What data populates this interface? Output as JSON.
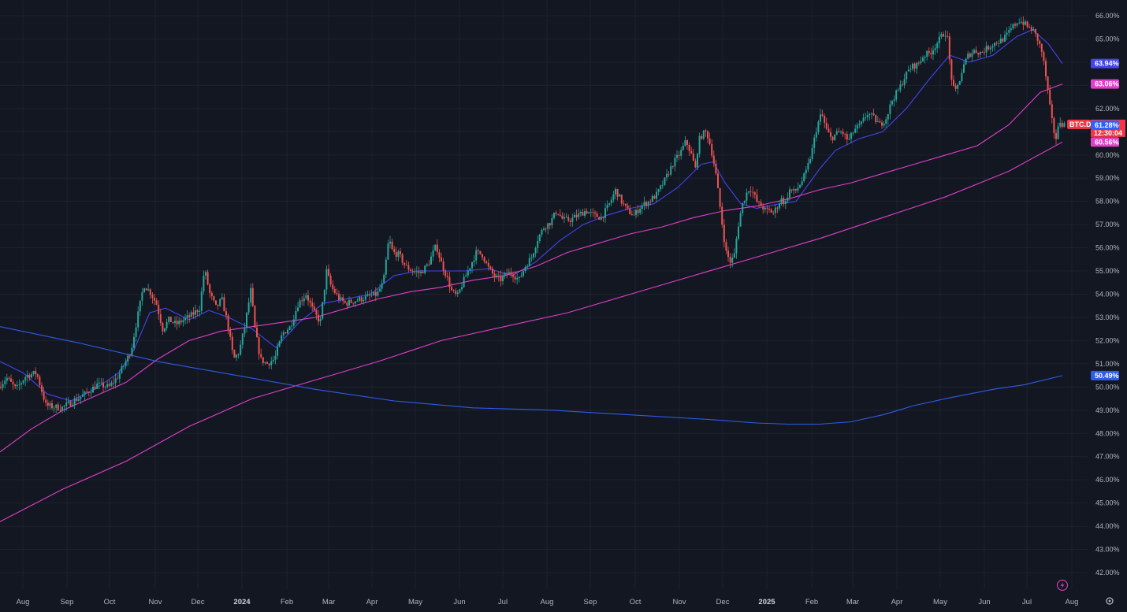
{
  "chart_data": {
    "type": "candlestick",
    "symbol": "BTC.D",
    "last_value_label": "61.32%",
    "countdown": "12:30:04",
    "y_axis": {
      "unit": "%",
      "ylim": [
        41.6,
        66.4
      ],
      "ticks": [
        "42.00%",
        "43.00%",
        "44.00%",
        "45.00%",
        "46.00%",
        "47.00%",
        "48.00%",
        "49.00%",
        "50.00%",
        "51.00%",
        "52.00%",
        "53.00%",
        "54.00%",
        "55.00%",
        "56.00%",
        "57.00%",
        "58.00%",
        "59.00%",
        "60.00%",
        "61.00%",
        "62.00%",
        "63.00%",
        "64.00%",
        "65.00%",
        "66.00%"
      ]
    },
    "x_axis": {
      "ticks": [
        {
          "label": "Aug",
          "bold": false
        },
        {
          "label": "Sep",
          "bold": false
        },
        {
          "label": "Oct",
          "bold": false
        },
        {
          "label": "Nov",
          "bold": false
        },
        {
          "label": "Dec",
          "bold": false
        },
        {
          "label": "2024",
          "bold": true
        },
        {
          "label": "Feb",
          "bold": false
        },
        {
          "label": "Mar",
          "bold": false
        },
        {
          "label": "Apr",
          "bold": false
        },
        {
          "label": "May",
          "bold": false
        },
        {
          "label": "Jun",
          "bold": false
        },
        {
          "label": "Jul",
          "bold": false
        },
        {
          "label": "Aug",
          "bold": false
        },
        {
          "label": "Sep",
          "bold": false
        },
        {
          "label": "Oct",
          "bold": false
        },
        {
          "label": "Nov",
          "bold": false
        },
        {
          "label": "Dec",
          "bold": false
        },
        {
          "label": "2025",
          "bold": true
        },
        {
          "label": "Feb",
          "bold": false
        },
        {
          "label": "Mar",
          "bold": false
        },
        {
          "label": "Apr",
          "bold": false
        },
        {
          "label": "May",
          "bold": false
        },
        {
          "label": "Jun",
          "bold": false
        },
        {
          "label": "Jul",
          "bold": false
        },
        {
          "label": "Aug",
          "bold": false
        }
      ]
    },
    "grid": true,
    "price_path": [
      [
        0,
        50.0
      ],
      [
        10,
        50.4
      ],
      [
        22,
        49.9
      ],
      [
        35,
        50.5
      ],
      [
        48,
        50.6
      ],
      [
        60,
        49.2
      ],
      [
        80,
        49.1
      ],
      [
        95,
        49.4
      ],
      [
        110,
        49.7
      ],
      [
        125,
        50.1
      ],
      [
        140,
        50.0
      ],
      [
        150,
        50.4
      ],
      [
        160,
        51.0
      ],
      [
        168,
        51.6
      ],
      [
        176,
        53.0
      ],
      [
        184,
        54.4
      ],
      [
        192,
        54.1
      ],
      [
        200,
        53.6
      ],
      [
        208,
        52.5
      ],
      [
        216,
        52.9
      ],
      [
        225,
        52.7
      ],
      [
        235,
        52.9
      ],
      [
        245,
        53.1
      ],
      [
        255,
        53.4
      ],
      [
        261,
        55.1
      ],
      [
        268,
        54.0
      ],
      [
        276,
        53.4
      ],
      [
        283,
        53.8
      ],
      [
        290,
        52.8
      ],
      [
        298,
        51.2
      ],
      [
        305,
        51.5
      ],
      [
        312,
        52.6
      ],
      [
        320,
        54.2
      ],
      [
        325,
        52.5
      ],
      [
        332,
        51.2
      ],
      [
        340,
        51.0
      ],
      [
        350,
        51.2
      ],
      [
        360,
        52.3
      ],
      [
        370,
        52.6
      ],
      [
        380,
        53.6
      ],
      [
        390,
        54.0
      ],
      [
        400,
        53.2
      ],
      [
        408,
        52.8
      ],
      [
        416,
        55.0
      ],
      [
        422,
        54.3
      ],
      [
        432,
        53.8
      ],
      [
        440,
        53.6
      ],
      [
        450,
        53.7
      ],
      [
        460,
        53.8
      ],
      [
        470,
        53.9
      ],
      [
        480,
        54.0
      ],
      [
        488,
        54.5
      ],
      [
        495,
        56.4
      ],
      [
        500,
        55.8
      ],
      [
        508,
        55.7
      ],
      [
        516,
        55.2
      ],
      [
        525,
        55.0
      ],
      [
        535,
        54.9
      ],
      [
        545,
        55.3
      ],
      [
        555,
        56.1
      ],
      [
        562,
        55.3
      ],
      [
        568,
        54.8
      ],
      [
        575,
        54.1
      ],
      [
        582,
        53.9
      ],
      [
        590,
        54.6
      ],
      [
        598,
        55.2
      ],
      [
        606,
        55.8
      ],
      [
        614,
        55.7
      ],
      [
        620,
        55.2
      ],
      [
        628,
        54.8
      ],
      [
        636,
        54.6
      ],
      [
        645,
        54.9
      ],
      [
        652,
        54.9
      ],
      [
        660,
        54.6
      ],
      [
        668,
        55.2
      ],
      [
        676,
        55.6
      ],
      [
        684,
        56.4
      ],
      [
        692,
        56.9
      ],
      [
        700,
        57.1
      ],
      [
        708,
        57.6
      ],
      [
        716,
        57.2
      ],
      [
        725,
        57.2
      ],
      [
        735,
        57.4
      ],
      [
        745,
        57.6
      ],
      [
        755,
        57.4
      ],
      [
        765,
        57.3
      ],
      [
        775,
        57.9
      ],
      [
        783,
        58.5
      ],
      [
        790,
        58.0
      ],
      [
        798,
        57.6
      ],
      [
        806,
        57.4
      ],
      [
        815,
        57.8
      ],
      [
        825,
        58.0
      ],
      [
        835,
        58.3
      ],
      [
        845,
        58.9
      ],
      [
        855,
        59.6
      ],
      [
        865,
        60.1
      ],
      [
        872,
        60.6
      ],
      [
        878,
        60.1
      ],
      [
        884,
        59.4
      ],
      [
        888,
        60.6
      ],
      [
        893,
        60.9
      ],
      [
        898,
        61.0
      ],
      [
        903,
        60.4
      ],
      [
        909,
        59.4
      ],
      [
        914,
        58.1
      ],
      [
        919,
        56.7
      ],
      [
        923,
        55.8
      ],
      [
        928,
        55.4
      ],
      [
        933,
        55.6
      ],
      [
        938,
        56.9
      ],
      [
        943,
        57.8
      ],
      [
        948,
        58.3
      ],
      [
        953,
        58.6
      ],
      [
        958,
        58.3
      ],
      [
        963,
        57.9
      ],
      [
        968,
        57.8
      ],
      [
        973,
        57.6
      ],
      [
        978,
        57.6
      ],
      [
        983,
        57.5
      ],
      [
        988,
        57.8
      ],
      [
        993,
        58.1
      ],
      [
        998,
        57.9
      ],
      [
        1003,
        58.5
      ],
      [
        1010,
        58.4
      ],
      [
        1018,
        58.8
      ],
      [
        1025,
        59.3
      ],
      [
        1032,
        60.2
      ],
      [
        1038,
        61.2
      ],
      [
        1044,
        61.8
      ],
      [
        1050,
        61.1
      ],
      [
        1056,
        60.7
      ],
      [
        1062,
        60.9
      ],
      [
        1070,
        61.0
      ],
      [
        1078,
        60.6
      ],
      [
        1086,
        61.1
      ],
      [
        1094,
        61.3
      ],
      [
        1102,
        61.8
      ],
      [
        1110,
        61.6
      ],
      [
        1118,
        61.3
      ],
      [
        1126,
        61.6
      ],
      [
        1134,
        62.4
      ],
      [
        1142,
        62.8
      ],
      [
        1150,
        63.4
      ],
      [
        1158,
        63.8
      ],
      [
        1166,
        63.9
      ],
      [
        1174,
        64.3
      ],
      [
        1182,
        64.4
      ],
      [
        1190,
        64.8
      ],
      [
        1198,
        65.2
      ],
      [
        1203,
        65.3
      ],
      [
        1208,
        63.5
      ],
      [
        1213,
        62.6
      ],
      [
        1218,
        63.1
      ],
      [
        1224,
        63.8
      ],
      [
        1230,
        64.3
      ],
      [
        1238,
        64.5
      ],
      [
        1246,
        64.4
      ],
      [
        1254,
        64.6
      ],
      [
        1262,
        64.8
      ],
      [
        1270,
        64.9
      ],
      [
        1278,
        65.1
      ],
      [
        1286,
        65.5
      ],
      [
        1294,
        65.8
      ],
      [
        1300,
        65.7
      ],
      [
        1306,
        65.5
      ],
      [
        1312,
        65.4
      ],
      [
        1318,
        65.0
      ],
      [
        1324,
        64.4
      ],
      [
        1329,
        63.3
      ],
      [
        1334,
        62.0
      ],
      [
        1338,
        61.1
      ],
      [
        1342,
        60.7
      ],
      [
        1346,
        61.5
      ],
      [
        1350,
        61.32
      ]
    ],
    "series": [
      {
        "label": "63.94%",
        "color": "#4444ee",
        "values": [
          [
            0,
            51.1
          ],
          [
            30,
            50.6
          ],
          [
            60,
            49.7
          ],
          [
            90,
            49.4
          ],
          [
            120,
            49.9
          ],
          [
            150,
            50.6
          ],
          [
            170,
            51.6
          ],
          [
            190,
            53.2
          ],
          [
            210,
            53.4
          ],
          [
            240,
            52.9
          ],
          [
            265,
            53.3
          ],
          [
            290,
            53.0
          ],
          [
            320,
            52.5
          ],
          [
            350,
            51.7
          ],
          [
            380,
            52.8
          ],
          [
            410,
            53.6
          ],
          [
            440,
            53.8
          ],
          [
            470,
            54.0
          ],
          [
            500,
            54.8
          ],
          [
            530,
            55.0
          ],
          [
            560,
            55.0
          ],
          [
            590,
            55.0
          ],
          [
            620,
            55.1
          ],
          [
            650,
            54.8
          ],
          [
            680,
            55.4
          ],
          [
            710,
            56.3
          ],
          [
            740,
            57.0
          ],
          [
            770,
            57.4
          ],
          [
            800,
            57.7
          ],
          [
            830,
            57.9
          ],
          [
            860,
            58.6
          ],
          [
            890,
            59.6
          ],
          [
            905,
            59.7
          ],
          [
            920,
            58.8
          ],
          [
            940,
            57.9
          ],
          [
            960,
            57.7
          ],
          [
            990,
            57.9
          ],
          [
            1010,
            58.0
          ],
          [
            1040,
            59.4
          ],
          [
            1060,
            60.2
          ],
          [
            1090,
            60.7
          ],
          [
            1120,
            61.0
          ],
          [
            1150,
            62.0
          ],
          [
            1180,
            63.3
          ],
          [
            1205,
            64.3
          ],
          [
            1230,
            64.0
          ],
          [
            1260,
            64.3
          ],
          [
            1290,
            65.1
          ],
          [
            1310,
            65.4
          ],
          [
            1330,
            64.8
          ],
          [
            1348,
            63.94
          ]
        ]
      },
      {
        "label": "63.06%",
        "color": "#e040c8",
        "values": [
          [
            0,
            47.2
          ],
          [
            40,
            48.2
          ],
          [
            80,
            49.0
          ],
          [
            120,
            49.6
          ],
          [
            160,
            50.2
          ],
          [
            200,
            51.2
          ],
          [
            240,
            52.0
          ],
          [
            280,
            52.4
          ],
          [
            320,
            52.6
          ],
          [
            360,
            52.8
          ],
          [
            400,
            53.0
          ],
          [
            440,
            53.4
          ],
          [
            480,
            53.8
          ],
          [
            520,
            54.1
          ],
          [
            560,
            54.3
          ],
          [
            600,
            54.6
          ],
          [
            640,
            54.8
          ],
          [
            680,
            55.2
          ],
          [
            720,
            55.8
          ],
          [
            760,
            56.2
          ],
          [
            800,
            56.6
          ],
          [
            840,
            56.9
          ],
          [
            880,
            57.3
          ],
          [
            920,
            57.6
          ],
          [
            960,
            57.8
          ],
          [
            1000,
            58.1
          ],
          [
            1040,
            58.5
          ],
          [
            1080,
            58.8
          ],
          [
            1120,
            59.2
          ],
          [
            1160,
            59.6
          ],
          [
            1200,
            60.0
          ],
          [
            1240,
            60.4
          ],
          [
            1280,
            61.3
          ],
          [
            1320,
            62.7
          ],
          [
            1348,
            63.06
          ]
        ]
      },
      {
        "label": "60.56%",
        "color": "#e040c8",
        "values": [
          [
            0,
            44.2
          ],
          [
            80,
            45.6
          ],
          [
            160,
            46.8
          ],
          [
            240,
            48.3
          ],
          [
            320,
            49.5
          ],
          [
            400,
            50.3
          ],
          [
            480,
            51.1
          ],
          [
            560,
            52.0
          ],
          [
            640,
            52.6
          ],
          [
            720,
            53.2
          ],
          [
            800,
            54.0
          ],
          [
            880,
            54.8
          ],
          [
            960,
            55.6
          ],
          [
            1040,
            56.4
          ],
          [
            1120,
            57.3
          ],
          [
            1200,
            58.2
          ],
          [
            1280,
            59.3
          ],
          [
            1348,
            60.56
          ]
        ]
      },
      {
        "label": "50.49%",
        "color": "#2f5ce8",
        "values": [
          [
            0,
            52.6
          ],
          [
            100,
            51.9
          ],
          [
            200,
            51.1
          ],
          [
            300,
            50.5
          ],
          [
            400,
            49.9
          ],
          [
            500,
            49.4
          ],
          [
            600,
            49.1
          ],
          [
            700,
            49.0
          ],
          [
            800,
            48.8
          ],
          [
            900,
            48.6
          ],
          [
            960,
            48.45
          ],
          [
            1000,
            48.4
          ],
          [
            1040,
            48.4
          ],
          [
            1080,
            48.5
          ],
          [
            1120,
            48.8
          ],
          [
            1160,
            49.2
          ],
          [
            1200,
            49.5
          ],
          [
            1260,
            49.9
          ],
          [
            1300,
            50.1
          ],
          [
            1348,
            50.49
          ]
        ]
      }
    ],
    "badges": [
      {
        "symbol_tag": "BTC.D",
        "value": "61.32%",
        "sub": "12:30:04",
        "color": "#f23645",
        "y": 61.32
      },
      {
        "value": "63.94%",
        "color": "#4444ee",
        "y": 63.94
      },
      {
        "value": "63.06%",
        "color": "#e040c8",
        "y": 63.06
      },
      {
        "value": "61.28%",
        "color": "#2962ff",
        "y": 61.28
      },
      {
        "value": "60.56%",
        "color": "#e040c8",
        "y": 60.56
      },
      {
        "value": "50.49%",
        "color": "#2f5ce8",
        "y": 50.49
      }
    ],
    "colors": {
      "background": "#131722",
      "grid": "#1e222d",
      "up": "#26a69a",
      "down": "#ef5350",
      "axis_text": "#b2b5be"
    }
  },
  "icons": {
    "lightning": "lightning-icon",
    "settings": "gear-icon"
  }
}
